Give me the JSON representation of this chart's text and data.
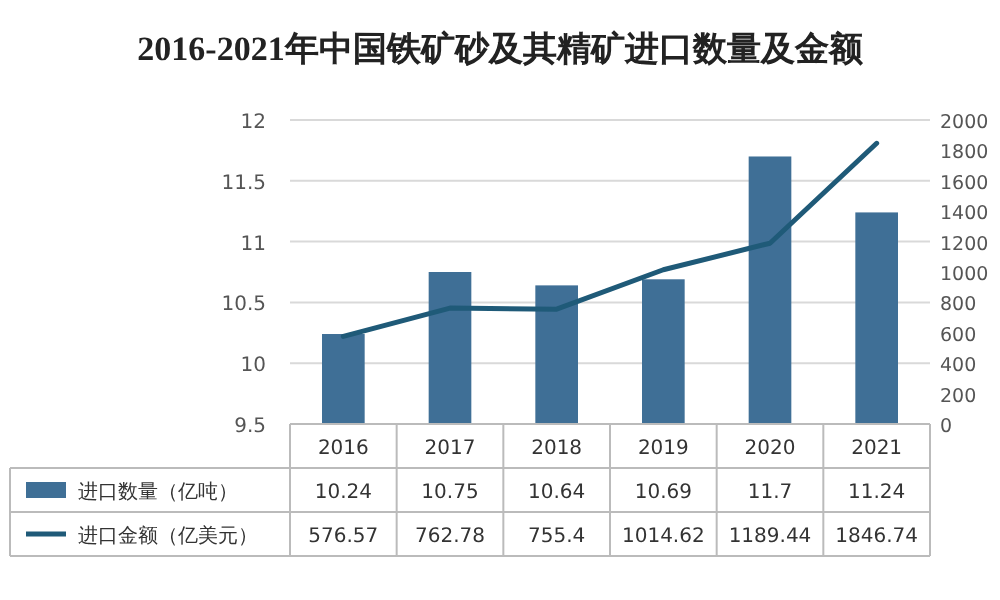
{
  "chart_data": {
    "type": "bar",
    "title": "2016-2021年中国铁矿砂及其精矿进口数量及金额",
    "categories": [
      "2016",
      "2017",
      "2018",
      "2019",
      "2020",
      "2021"
    ],
    "series": [
      {
        "name": "进口数量（亿吨）",
        "color": "#3f6f96",
        "values": [
          10.24,
          10.75,
          10.64,
          10.69,
          11.7,
          11.24
        ]
      },
      {
        "name": "进口金额（亿美元）",
        "type": "line",
        "axis": "y2",
        "color": "#1f5a78",
        "values": [
          576.57,
          762.78,
          755.4,
          1014.62,
          1189.44,
          1846.74
        ]
      }
    ],
    "ylim": [
      9.5,
      12
    ],
    "yticks": [
      9.5,
      10,
      10.5,
      11,
      11.5,
      12
    ],
    "y2lim": [
      0,
      2000
    ],
    "y2ticks": [
      0,
      200,
      400,
      600,
      800,
      1000,
      1200,
      1400,
      1600,
      1800,
      2000
    ],
    "grid": "y",
    "data_labels": true,
    "legend": "bottom"
  }
}
